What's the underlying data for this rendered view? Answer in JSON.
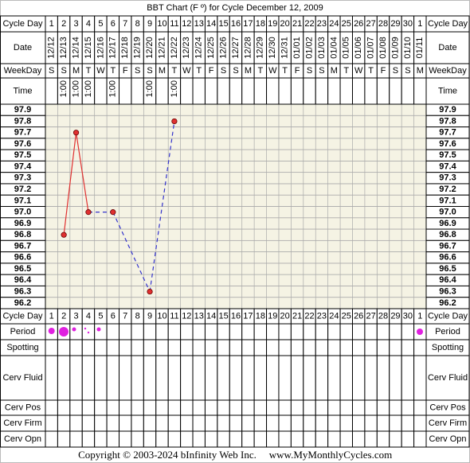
{
  "chart_data": {
    "type": "line",
    "title": "BBT Chart (F º) for Cycle December 12, 2009",
    "row_labels": {
      "cycle_day": "Cycle Day",
      "date": "Date",
      "weekday": "WeekDay",
      "time": "Time",
      "period": "Period",
      "spotting": "Spotting",
      "cerv_fluid": "Cerv Fluid",
      "cerv_pos": "Cerv Pos",
      "cerv_firm": "Cerv Firm",
      "cerv_opn": "Cerv Opn"
    },
    "cycle_days": [
      1,
      2,
      3,
      4,
      5,
      6,
      7,
      8,
      9,
      10,
      11,
      12,
      13,
      14,
      15,
      16,
      17,
      18,
      19,
      20,
      21,
      22,
      23,
      24,
      25,
      26,
      27,
      28,
      29,
      30,
      1
    ],
    "categories": [
      "12/12",
      "12/13",
      "12/14",
      "12/15",
      "12/16",
      "12/17",
      "12/18",
      "12/19",
      "12/20",
      "12/21",
      "12/22",
      "12/23",
      "12/24",
      "12/25",
      "12/26",
      "12/27",
      "12/28",
      "12/29",
      "12/30",
      "12/31",
      "01/01",
      "01/02",
      "01/03",
      "01/04",
      "01/05",
      "01/06",
      "01/07",
      "01/08",
      "01/09",
      "01/10",
      "01/11"
    ],
    "weekdays": [
      "S",
      "S",
      "M",
      "T",
      "W",
      "T",
      "F",
      "S",
      "S",
      "M",
      "T",
      "W",
      "T",
      "F",
      "S",
      "S",
      "M",
      "T",
      "W",
      "T",
      "F",
      "S",
      "S",
      "M",
      "T",
      "W",
      "T",
      "F",
      "S",
      "S",
      "M"
    ],
    "times": [
      null,
      "1:00",
      "1:00",
      "1:00",
      null,
      "1:00",
      null,
      null,
      "1:00",
      null,
      "1:00",
      null,
      null,
      null,
      null,
      null,
      null,
      null,
      null,
      null,
      null,
      null,
      null,
      null,
      null,
      null,
      null,
      null,
      null,
      null,
      null
    ],
    "series": [
      {
        "color": "#e03030",
        "gap_color": "#3333cc",
        "values": [
          null,
          96.8,
          97.7,
          97.0,
          null,
          97.0,
          null,
          null,
          96.3,
          null,
          97.8,
          null,
          null,
          null,
          null,
          null,
          null,
          null,
          null,
          null,
          null,
          null,
          null,
          null,
          null,
          null,
          null,
          null,
          null,
          null,
          null
        ]
      }
    ],
    "ylim": [
      96.15,
      97.95
    ],
    "yticks": [
      97.9,
      97.8,
      97.7,
      97.6,
      97.5,
      97.4,
      97.3,
      97.2,
      97.1,
      {
        "value": 97,
        "label": "97.0"
      },
      96.9,
      96.8,
      96.7,
      96.6,
      96.5,
      96.4,
      96.3,
      96.2
    ],
    "plot_background": "#f5f3e4"
  },
  "footer": {
    "copyright": "Copyright © 2003-2024 bInfinity Web Inc.",
    "website": "www.MyMonthlyCycles.com"
  }
}
